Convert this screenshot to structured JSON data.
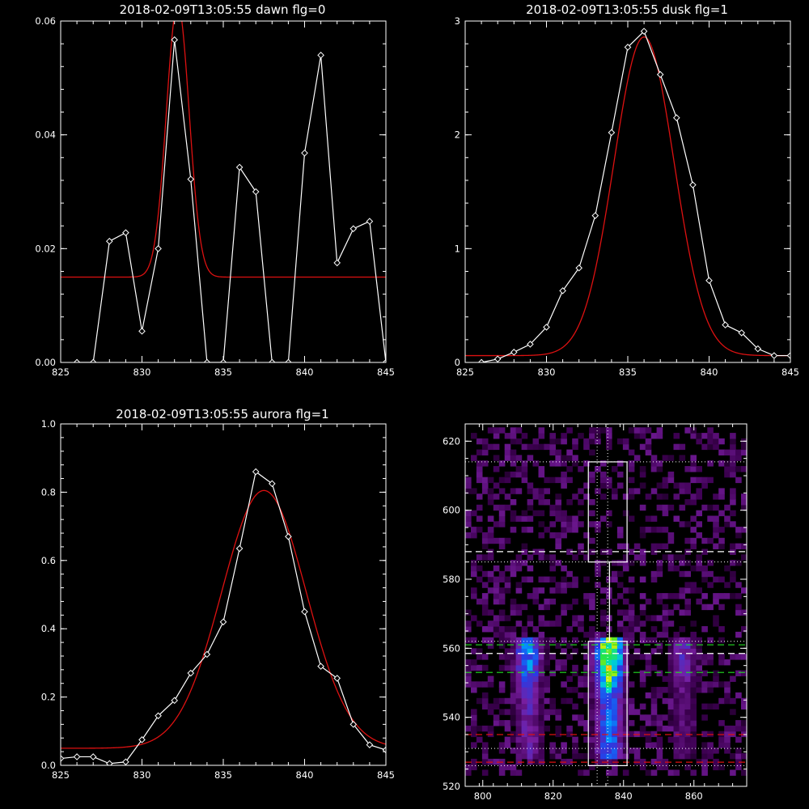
{
  "chart_data": [
    {
      "type": "line",
      "title": "2018-02-09T13:05:55 dawn flg=0",
      "xlim": [
        825,
        845
      ],
      "ylim": [
        0,
        0.06
      ],
      "xticks": [
        825,
        830,
        835,
        840,
        845
      ],
      "yticks": [
        0.0,
        0.02,
        0.04,
        0.06
      ],
      "ytick_labels": [
        "0.00",
        "0.02",
        "0.04",
        "0.06"
      ],
      "series": [
        {
          "color": "#ffffff",
          "markers": "diamond",
          "x": [
            826,
            827,
            828,
            829,
            830,
            831,
            832,
            833,
            834,
            835,
            836,
            837,
            838,
            839,
            840,
            841,
            842,
            843,
            844,
            845
          ],
          "y": [
            0.0,
            0.0,
            0.0213,
            0.0228,
            0.0055,
            0.02,
            0.0567,
            0.0322,
            0.0,
            0.0,
            0.0343,
            0.03,
            0.0,
            0.0,
            0.0368,
            0.054,
            0.0175,
            0.0235,
            0.0248,
            0.0
          ]
        },
        {
          "color": "#dd1111",
          "fit": "gaussian",
          "offset": 0.015,
          "amplitude": 0.048,
          "center": 832.2,
          "sigma": 0.7
        }
      ]
    },
    {
      "type": "line",
      "title": "2018-02-09T13:05:55 dusk flg=1",
      "xlim": [
        825,
        845
      ],
      "ylim": [
        0,
        3
      ],
      "xticks": [
        825,
        830,
        835,
        840,
        845
      ],
      "yticks": [
        0,
        1,
        2,
        3
      ],
      "ytick_labels": [
        "0",
        "1",
        "2",
        "3"
      ],
      "series": [
        {
          "color": "#ffffff",
          "markers": "diamond",
          "x": [
            826,
            827,
            828,
            829,
            830,
            831,
            832,
            833,
            834,
            835,
            836,
            837,
            838,
            839,
            840,
            841,
            842,
            843,
            844,
            845
          ],
          "y": [
            0.0,
            0.03,
            0.09,
            0.16,
            0.31,
            0.63,
            0.83,
            1.29,
            2.02,
            2.77,
            2.91,
            2.53,
            2.15,
            1.56,
            0.72,
            0.33,
            0.26,
            0.12,
            0.06,
            0.06
          ]
        },
        {
          "color": "#dd1111",
          "fit": "gaussian",
          "offset": 0.06,
          "amplitude": 2.8,
          "center": 836.0,
          "sigma": 1.85
        }
      ]
    },
    {
      "type": "line",
      "title": "2018-02-09T13:05:55 aurora flg=1",
      "xlim": [
        825,
        845
      ],
      "ylim": [
        0,
        1
      ],
      "xticks": [
        825,
        830,
        835,
        840,
        845
      ],
      "yticks": [
        0.0,
        0.2,
        0.4,
        0.6,
        0.8,
        1.0
      ],
      "ytick_labels": [
        "0.0",
        "0.2",
        "0.4",
        "0.6",
        "0.8",
        "1.0"
      ],
      "series": [
        {
          "color": "#ffffff",
          "markers": "diamond",
          "x": [
            825,
            826,
            827,
            828,
            829,
            830,
            831,
            832,
            833,
            834,
            835,
            836,
            837,
            838,
            839,
            840,
            841,
            842,
            843,
            844,
            845
          ],
          "y": [
            0.02,
            0.025,
            0.025,
            0.005,
            0.01,
            0.075,
            0.145,
            0.19,
            0.27,
            0.325,
            0.42,
            0.635,
            0.86,
            0.825,
            0.67,
            0.45,
            0.29,
            0.255,
            0.12,
            0.06,
            0.045
          ]
        },
        {
          "color": "#dd1111",
          "fit": "gaussian",
          "offset": 0.05,
          "amplitude": 0.755,
          "center": 837.5,
          "sigma": 2.6
        }
      ]
    },
    {
      "type": "heatmap",
      "xlim": [
        795,
        875
      ],
      "ylim": [
        520,
        625
      ],
      "xticks": [
        800,
        820,
        840,
        860
      ],
      "yticks": [
        520,
        540,
        560,
        580,
        600,
        620
      ],
      "colormap": "rainbow",
      "emission_columns": [
        {
          "x_center": 813,
          "y_range": [
            527,
            563
          ],
          "peak": 0.5
        },
        {
          "x_center": 836,
          "y_range": [
            527,
            563
          ],
          "peak": 1.0
        },
        {
          "x_center": 857,
          "y_range": [
            527,
            563
          ],
          "peak": 0.28
        }
      ],
      "boxes": [
        {
          "x": [
            830,
            841
          ],
          "y": [
            585,
            614
          ],
          "color": "#ffffff"
        },
        {
          "x": [
            830,
            841
          ],
          "y": [
            526,
            562
          ],
          "color": "#ffffff"
        },
        {
          "x": [
            836,
            836
          ],
          "y": [
            562,
            585
          ],
          "color": "#ffffff"
        }
      ],
      "dotted_hlines": [
        {
          "y": 614,
          "color": "#ffffff"
        },
        {
          "y": 585,
          "color": "#ffffff"
        },
        {
          "y": 562,
          "color": "#ffffff"
        },
        {
          "y": 531,
          "color": "#ffffff"
        },
        {
          "y": 526,
          "color": "#ffffff"
        }
      ],
      "dotted_vlines": [
        {
          "x": 832.5,
          "color": "#ffffff"
        },
        {
          "x": 835.5,
          "color": "#ffffff"
        }
      ],
      "dashed_hlines": [
        {
          "y": 588,
          "color": "#ffffff"
        },
        {
          "y": 558.5,
          "color": "#ffffff"
        },
        {
          "y": 561,
          "color": "#22dd22"
        },
        {
          "y": 553,
          "color": "#22dd22"
        },
        {
          "y": 535,
          "color": "#dd1111"
        },
        {
          "y": 527,
          "color": "#dd1111"
        }
      ]
    }
  ]
}
